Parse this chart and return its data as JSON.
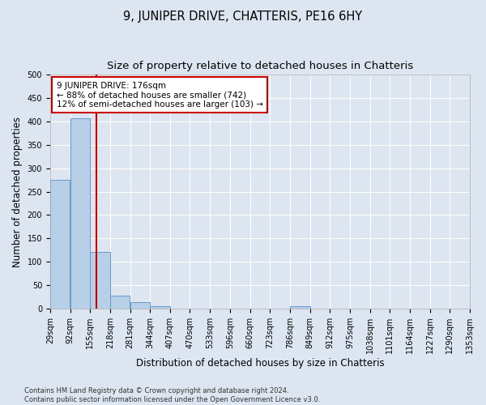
{
  "title": "9, JUNIPER DRIVE, CHATTERIS, PE16 6HY",
  "subtitle": "Size of property relative to detached houses in Chatteris",
  "xlabel": "Distribution of detached houses by size in Chatteris",
  "ylabel": "Number of detached properties",
  "bar_color": "#b8cfe8",
  "bar_edge_color": "#6699cc",
  "vline_color": "#cc0000",
  "vline_x": 176,
  "categories": [
    29,
    92,
    155,
    218,
    281,
    344,
    407,
    470,
    533,
    596,
    660,
    723,
    786,
    849,
    912,
    975,
    1038,
    1101,
    1164,
    1227,
    1290
  ],
  "bin_width": 63,
  "values": [
    275,
    407,
    121,
    28,
    14,
    5,
    0,
    0,
    0,
    0,
    0,
    0,
    5,
    0,
    0,
    0,
    0,
    0,
    0,
    0,
    0
  ],
  "ylim": [
    0,
    500
  ],
  "yticks": [
    0,
    50,
    100,
    150,
    200,
    250,
    300,
    350,
    400,
    450,
    500
  ],
  "annotation_text": "9 JUNIPER DRIVE: 176sqm\n← 88% of detached houses are smaller (742)\n12% of semi-detached houses are larger (103) →",
  "annotation_box_color": "#ffffff",
  "annotation_box_edge_color": "#cc0000",
  "footer_line1": "Contains HM Land Registry data © Crown copyright and database right 2024.",
  "footer_line2": "Contains public sector information licensed under the Open Government Licence v3.0.",
  "background_color": "#dde6f0",
  "plot_background_color": "#dde6f0",
  "grid_color": "#ffffff",
  "title_fontsize": 10.5,
  "subtitle_fontsize": 9.5,
  "tick_fontsize": 7,
  "axis_label_fontsize": 8.5,
  "annotation_fontsize": 7.5,
  "footer_fontsize": 6
}
